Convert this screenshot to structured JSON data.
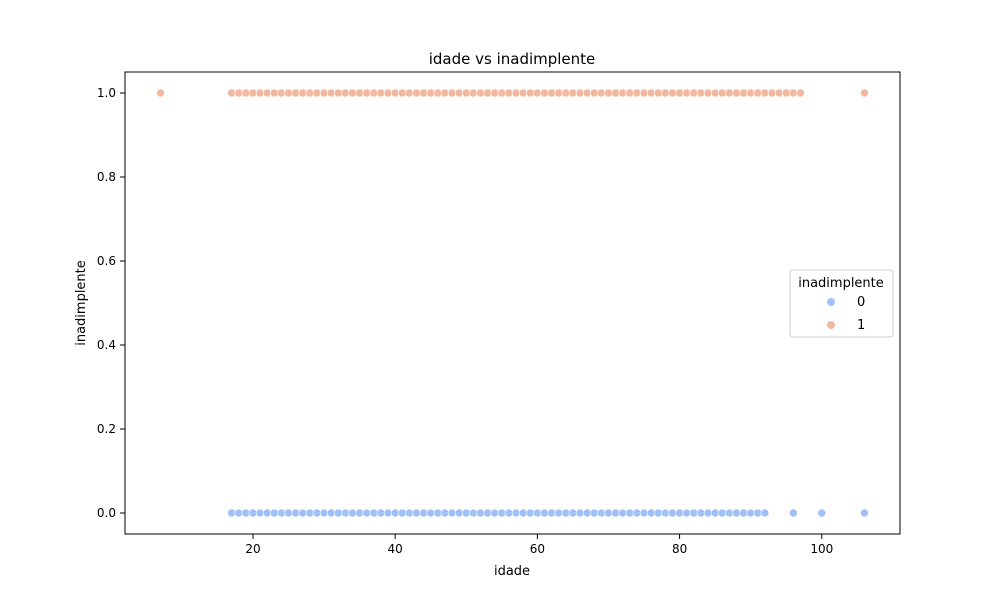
{
  "chart_data": {
    "type": "scatter",
    "title": "idade vs inadimplente",
    "xlabel": "idade",
    "ylabel": "inadimplente",
    "xlim": [
      2,
      111
    ],
    "ylim": [
      -0.05,
      1.05
    ],
    "xticks": [
      20,
      40,
      60,
      80,
      100
    ],
    "yticks": [
      0.0,
      0.2,
      0.4,
      0.6,
      0.8,
      1.0
    ],
    "ytick_labels": [
      "0.0",
      "0.2",
      "0.4",
      "0.6",
      "0.8",
      "1.0"
    ],
    "grid": false,
    "legend": {
      "title": "inadimplente",
      "placement": "center-right",
      "entries": [
        "0",
        "1"
      ]
    },
    "series": [
      {
        "name": "0",
        "color": "#a1c0f7",
        "y": 0,
        "x": [
          17,
          18,
          19,
          20,
          21,
          22,
          23,
          24,
          25,
          26,
          27,
          28,
          29,
          30,
          31,
          32,
          33,
          34,
          35,
          36,
          37,
          38,
          39,
          40,
          41,
          42,
          43,
          44,
          45,
          46,
          47,
          48,
          49,
          50,
          51,
          52,
          53,
          54,
          55,
          56,
          57,
          58,
          59,
          60,
          61,
          62,
          63,
          64,
          65,
          66,
          67,
          68,
          69,
          70,
          71,
          72,
          73,
          74,
          75,
          76,
          77,
          78,
          79,
          80,
          81,
          82,
          83,
          84,
          85,
          86,
          87,
          88,
          89,
          90,
          91,
          92,
          96,
          100,
          106
        ]
      },
      {
        "name": "1",
        "color": "#f2b79f",
        "y": 1,
        "x": [
          7,
          17,
          18,
          19,
          20,
          21,
          22,
          23,
          24,
          25,
          26,
          27,
          28,
          29,
          30,
          31,
          32,
          33,
          34,
          35,
          36,
          37,
          38,
          39,
          40,
          41,
          42,
          43,
          44,
          45,
          46,
          47,
          48,
          49,
          50,
          51,
          52,
          53,
          54,
          55,
          56,
          57,
          58,
          59,
          60,
          61,
          62,
          63,
          64,
          65,
          66,
          67,
          68,
          69,
          70,
          71,
          72,
          73,
          74,
          75,
          76,
          77,
          78,
          79,
          80,
          81,
          82,
          83,
          84,
          85,
          86,
          87,
          88,
          89,
          90,
          91,
          92,
          93,
          94,
          95,
          96,
          97,
          106
        ]
      }
    ]
  }
}
